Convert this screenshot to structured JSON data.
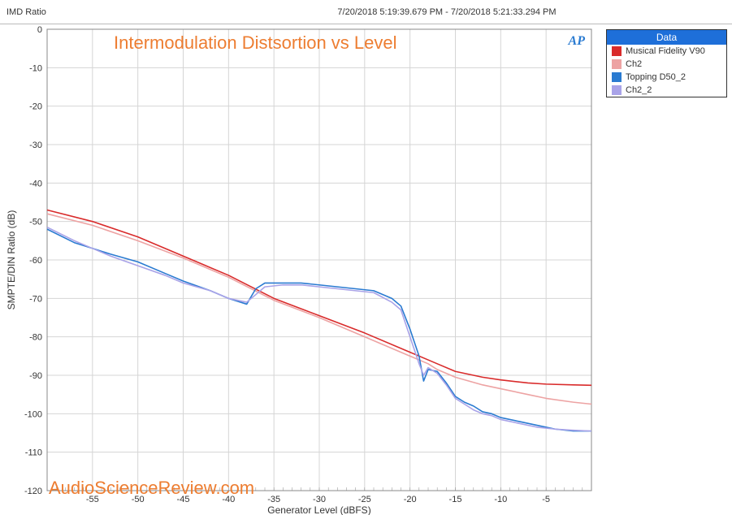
{
  "topbar": {
    "title": "IMD Ratio",
    "timestamp": "7/20/2018 5:19:39.679 PM - 7/20/2018 5:21:33.294 PM"
  },
  "overlay": {
    "title": "Intermodulation Distsortion vs Level",
    "title_color": "#ed7d31",
    "watermark": "AudioScienceReview.com",
    "watermark_color": "#ed7d31",
    "ap_logo": "AP"
  },
  "legend": {
    "header": "Data",
    "header_bg": "#1e6fd9",
    "items": [
      {
        "label": "Musical Fidelity V90",
        "color": "#d92b2b"
      },
      {
        "label": "Ch2",
        "color": "#eda3a3"
      },
      {
        "label": "Topping D50_2",
        "color": "#2a7bd1"
      },
      {
        "label": "Ch2_2",
        "color": "#a9a3e8"
      }
    ]
  },
  "chart": {
    "type": "line",
    "background_color": "#ffffff",
    "grid_color": "#d5d5d5",
    "axis_line_color": "#888888",
    "tick_label_color": "#333333",
    "xlabel": "Generator Level (dBFS)",
    "ylabel": "SMPTE/DIN Ratio (dB)",
    "xlim": [
      -60,
      0
    ],
    "ylim": [
      -120,
      0
    ],
    "xticks": [
      -55,
      -50,
      -45,
      -40,
      -35,
      -30,
      -25,
      -20,
      -15,
      -10,
      -5
    ],
    "xtick_minor_step": 1,
    "yticks": [
      0,
      -10,
      -20,
      -30,
      -40,
      -50,
      -60,
      -70,
      -80,
      -90,
      -100,
      -110,
      -120
    ],
    "line_width": 1.6,
    "series": [
      {
        "name": "Musical Fidelity V90",
        "color": "#d92b2b",
        "data": [
          [
            -60,
            -47
          ],
          [
            -55,
            -50
          ],
          [
            -50,
            -54
          ],
          [
            -45,
            -59
          ],
          [
            -40,
            -64
          ],
          [
            -35,
            -70
          ],
          [
            -30,
            -74.5
          ],
          [
            -25,
            -79
          ],
          [
            -20,
            -84
          ],
          [
            -18,
            -86
          ],
          [
            -17,
            -87
          ],
          [
            -15,
            -89
          ],
          [
            -12,
            -90.5
          ],
          [
            -10,
            -91.2
          ],
          [
            -7,
            -92
          ],
          [
            -5,
            -92.3
          ],
          [
            -2,
            -92.5
          ],
          [
            0,
            -92.6
          ]
        ]
      },
      {
        "name": "Ch2",
        "color": "#eda3a3",
        "data": [
          [
            -60,
            -48
          ],
          [
            -55,
            -51
          ],
          [
            -50,
            -55
          ],
          [
            -45,
            -59.5
          ],
          [
            -40,
            -64.5
          ],
          [
            -35,
            -70.5
          ],
          [
            -30,
            -75
          ],
          [
            -25,
            -80
          ],
          [
            -20,
            -85
          ],
          [
            -18,
            -87
          ],
          [
            -17,
            -88.5
          ],
          [
            -15,
            -90.5
          ],
          [
            -12,
            -92.5
          ],
          [
            -10,
            -93.5
          ],
          [
            -7,
            -95
          ],
          [
            -5,
            -96
          ],
          [
            -2,
            -97
          ],
          [
            0,
            -97.5
          ]
        ]
      },
      {
        "name": "Topping D50_2",
        "color": "#2a7bd1",
        "data": [
          [
            -60,
            -52
          ],
          [
            -57,
            -55.5
          ],
          [
            -55,
            -57
          ],
          [
            -53,
            -58.5
          ],
          [
            -50,
            -60.5
          ],
          [
            -47,
            -63.5
          ],
          [
            -45,
            -65.5
          ],
          [
            -42,
            -68
          ],
          [
            -40,
            -70
          ],
          [
            -38,
            -71.5
          ],
          [
            -37,
            -67.5
          ],
          [
            -36,
            -66
          ],
          [
            -34,
            -66
          ],
          [
            -32,
            -66
          ],
          [
            -30,
            -66.5
          ],
          [
            -28,
            -67
          ],
          [
            -26,
            -67.5
          ],
          [
            -24,
            -68
          ],
          [
            -22,
            -70
          ],
          [
            -21,
            -72
          ],
          [
            -20,
            -78
          ],
          [
            -19,
            -85
          ],
          [
            -18.5,
            -91.5
          ],
          [
            -18,
            -88.5
          ],
          [
            -17,
            -89
          ],
          [
            -16,
            -92
          ],
          [
            -15,
            -95.5
          ],
          [
            -14,
            -97
          ],
          [
            -13,
            -98
          ],
          [
            -12,
            -99.5
          ],
          [
            -11,
            -100
          ],
          [
            -10,
            -101
          ],
          [
            -8,
            -102
          ],
          [
            -6,
            -103
          ],
          [
            -4,
            -104
          ],
          [
            -2,
            -104.5
          ],
          [
            0,
            -104.5
          ]
        ]
      },
      {
        "name": "Ch2_2",
        "color": "#a9a3e8",
        "data": [
          [
            -60,
            -51.5
          ],
          [
            -57,
            -55
          ],
          [
            -55,
            -57
          ],
          [
            -53,
            -59
          ],
          [
            -50,
            -61.5
          ],
          [
            -47,
            -64
          ],
          [
            -45,
            -66
          ],
          [
            -42,
            -68
          ],
          [
            -40,
            -70
          ],
          [
            -38,
            -71
          ],
          [
            -37,
            -69
          ],
          [
            -36,
            -67
          ],
          [
            -34,
            -66.5
          ],
          [
            -32,
            -66.5
          ],
          [
            -30,
            -67
          ],
          [
            -28,
            -67.5
          ],
          [
            -26,
            -68
          ],
          [
            -24,
            -68.5
          ],
          [
            -22,
            -71
          ],
          [
            -21,
            -73
          ],
          [
            -20,
            -80
          ],
          [
            -19,
            -87
          ],
          [
            -18.5,
            -90
          ],
          [
            -18,
            -88
          ],
          [
            -17,
            -89.5
          ],
          [
            -16,
            -92.5
          ],
          [
            -15,
            -96
          ],
          [
            -14,
            -97.5
          ],
          [
            -13,
            -99
          ],
          [
            -12,
            -100
          ],
          [
            -11,
            -100.5
          ],
          [
            -10,
            -101.5
          ],
          [
            -8,
            -102.5
          ],
          [
            -6,
            -103.5
          ],
          [
            -4,
            -104
          ],
          [
            -2,
            -104.3
          ],
          [
            0,
            -104.5
          ]
        ]
      }
    ]
  }
}
